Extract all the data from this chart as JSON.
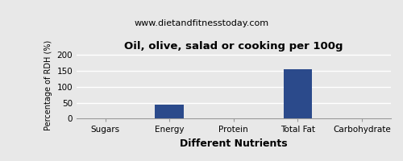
{
  "title": "Oil, olive, salad or cooking per 100g",
  "subtitle": "www.dietandfitnesstoday.com",
  "xlabel": "Different Nutrients",
  "ylabel": "Percentage of RDH (%)",
  "categories": [
    "Sugars",
    "Energy",
    "Protein",
    "Total Fat",
    "Carbohydrate"
  ],
  "values": [
    0,
    45,
    0,
    155,
    0
  ],
  "bar_color": "#2b4a8b",
  "ylim": [
    0,
    210
  ],
  "yticks": [
    0,
    50,
    100,
    150,
    200
  ],
  "background_color": "#e8e8e8",
  "plot_bg_color": "#e8e8e8",
  "title_fontsize": 9.5,
  "subtitle_fontsize": 8,
  "xlabel_fontsize": 9,
  "ylabel_fontsize": 7,
  "tick_fontsize": 7.5,
  "bar_width": 0.45,
  "grid_color": "#ffffff",
  "spine_color": "#999999"
}
